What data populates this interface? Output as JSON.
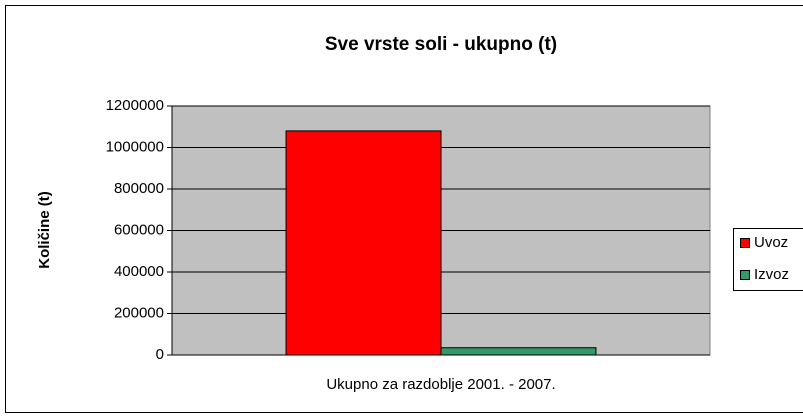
{
  "chart_data": {
    "type": "bar",
    "title": "Sve vrste soli - ukupno (t)",
    "y_label": "Količine (t)",
    "categories": [
      "Ukupno za razdoblje 2001. - 2007."
    ],
    "series": [
      {
        "name": "Uvoz",
        "color": "#ff0000",
        "values": [
          1080000
        ]
      },
      {
        "name": "Izvoz",
        "color": "#339966",
        "values": [
          35000
        ]
      }
    ],
    "ylim": [
      0,
      1200000
    ],
    "yticks": [
      0,
      200000,
      400000,
      600000,
      800000,
      1000000,
      1200000
    ],
    "grid": true,
    "legend": "right"
  }
}
